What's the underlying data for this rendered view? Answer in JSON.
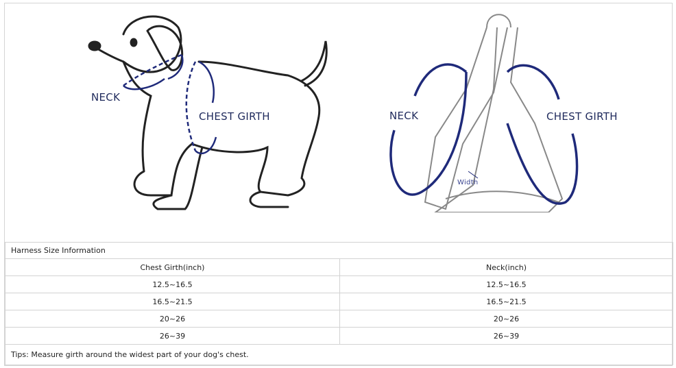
{
  "illustration_dog": {
    "neck_label": "NECK",
    "chest_label": "CHEST GIRTH"
  },
  "illustration_harness": {
    "neck_label": "NECK",
    "chest_label": "CHEST GIRTH",
    "width_label": "Width"
  },
  "colors": {
    "accent": "#1f2a7a",
    "line": "#333333",
    "border": "#d2d2d2"
  },
  "table": {
    "title": "Harness Size Information",
    "headers": [
      "Chest Girth(inch)",
      "Neck(inch)"
    ],
    "rows": [
      [
        "12.5~16.5",
        "12.5~16.5"
      ],
      [
        "16.5~21.5",
        "16.5~21.5"
      ],
      [
        "20~26",
        "20~26"
      ],
      [
        "26~39",
        "26~39"
      ]
    ],
    "tips": "Tips: Measure girth around the widest part of your dog's chest."
  }
}
